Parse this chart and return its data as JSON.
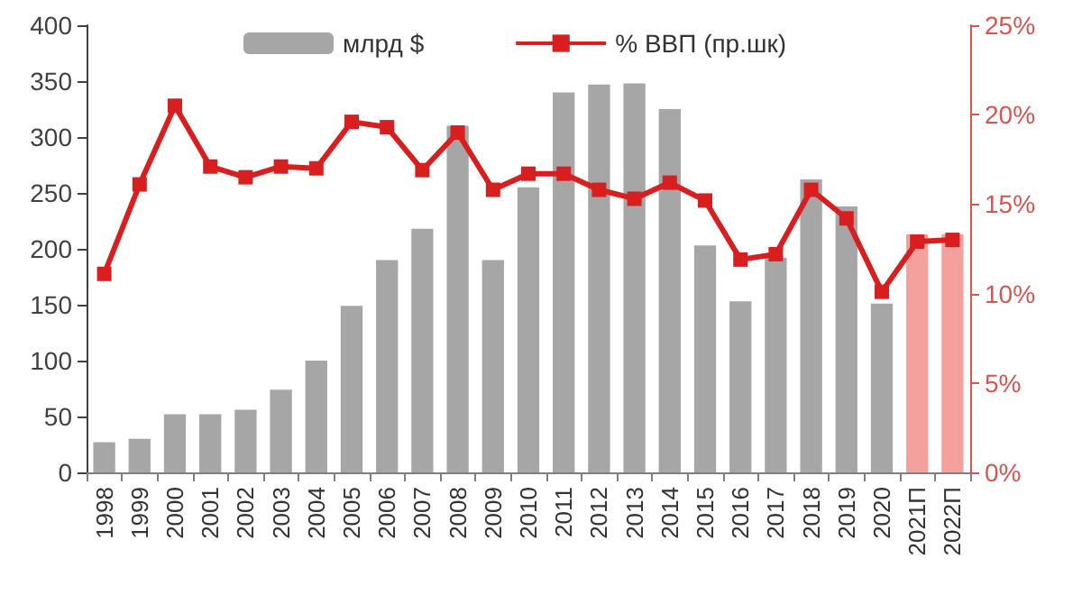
{
  "chart_data": {
    "type": "bar",
    "categories": [
      "1998",
      "1999",
      "2000",
      "2001",
      "2002",
      "2003",
      "2004",
      "2005",
      "2006",
      "2007",
      "2008",
      "2009",
      "2010",
      "2011",
      "2012",
      "2013",
      "2014",
      "2015",
      "2016",
      "2017",
      "2018",
      "2019",
      "2020",
      "2021П",
      "2022П"
    ],
    "series": [
      {
        "name": "млрд $",
        "color": "#a6a6a6",
        "colors": [
          "#a6a6a6",
          "#a6a6a6",
          "#a6a6a6",
          "#a6a6a6",
          "#a6a6a6",
          "#a6a6a6",
          "#a6a6a6",
          "#a6a6a6",
          "#a6a6a6",
          "#a6a6a6",
          "#a6a6a6",
          "#a6a6a6",
          "#a6a6a6",
          "#a6a6a6",
          "#a6a6a6",
          "#a6a6a6",
          "#a6a6a6",
          "#a6a6a6",
          "#a6a6a6",
          "#a6a6a6",
          "#a6a6a6",
          "#a6a6a6",
          "#a6a6a6",
          "#f4a09c",
          "#f4a09c"
        ],
        "values": [
          27,
          30,
          52,
          52,
          56,
          74,
          100,
          149,
          190,
          218,
          310,
          190,
          255,
          340,
          347,
          348,
          325,
          203,
          153,
          192,
          262,
          238,
          151,
          213,
          213
        ]
      },
      {
        "name": "% ВВП (пр.шк)",
        "type": "line",
        "axis": "y2",
        "color": "#d81e1e",
        "values": [
          11.1,
          16.1,
          20.5,
          17.1,
          16.5,
          17.1,
          17.0,
          19.6,
          19.3,
          16.9,
          19.0,
          15.8,
          16.7,
          16.7,
          15.8,
          15.3,
          16.2,
          15.2,
          11.9,
          12.2,
          15.8,
          14.2,
          10.1,
          12.9,
          13.0
        ]
      }
    ],
    "ylim": [
      0,
      400
    ],
    "yticks": [
      0,
      50,
      100,
      150,
      200,
      250,
      300,
      350,
      400
    ],
    "y2lim": [
      0,
      25
    ],
    "y2ticks": [
      {
        "value": 0,
        "label": "0%"
      },
      {
        "value": 5,
        "label": "5%"
      },
      {
        "value": 10,
        "label": "10%"
      },
      {
        "value": 15,
        "label": "15%"
      },
      {
        "value": 20,
        "label": "20%"
      },
      {
        "value": 25,
        "label": "25%"
      }
    ],
    "marker": "square",
    "line_style": "solid",
    "legend": "top",
    "grid": false
  }
}
